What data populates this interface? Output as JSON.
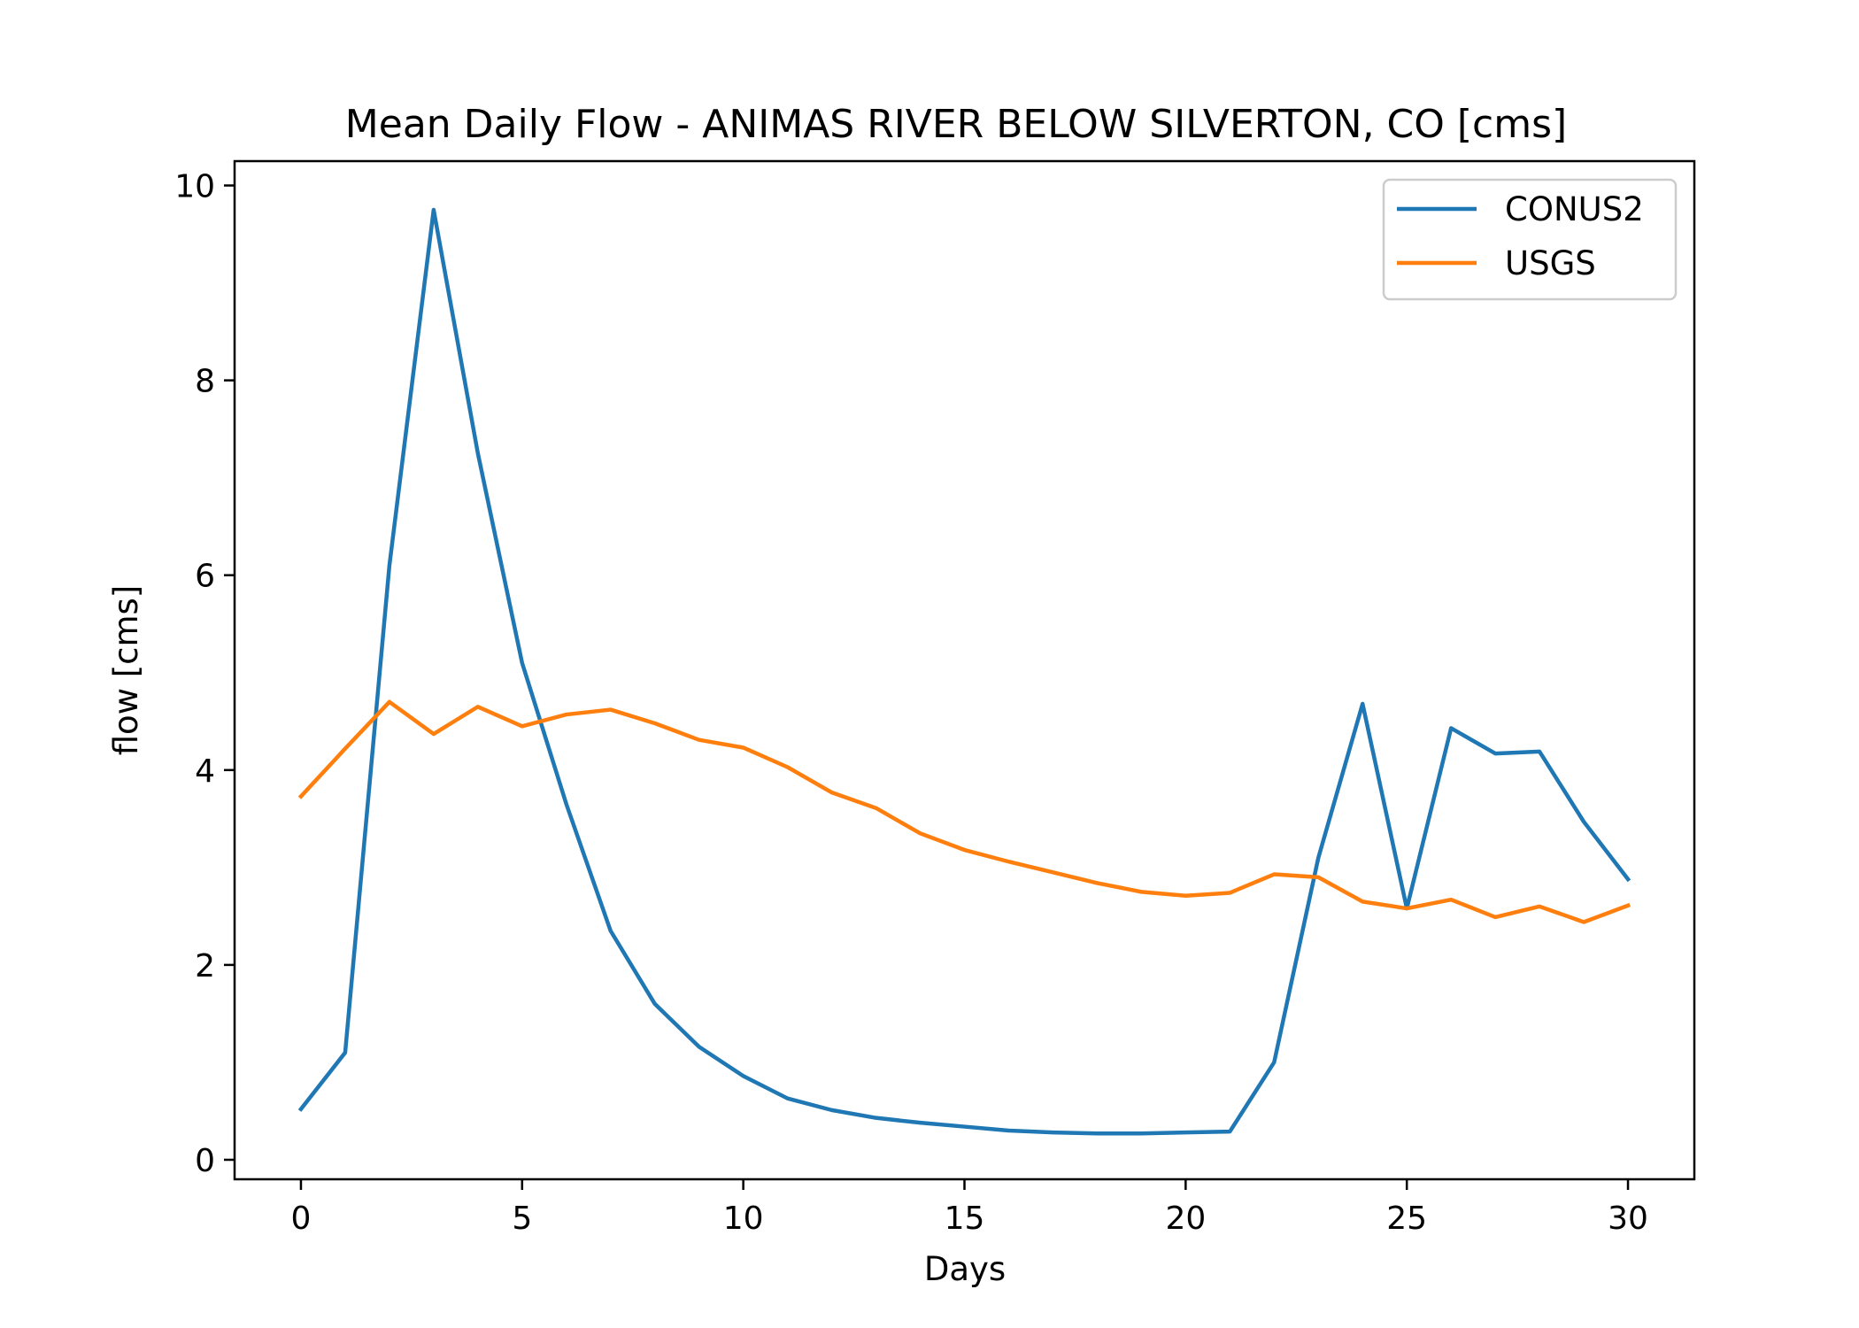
{
  "chart_data": {
    "type": "line",
    "title": "Mean Daily Flow - ANIMAS RIVER BELOW SILVERTON, CO [cms]",
    "xlabel": "Days",
    "ylabel": "flow [cms]",
    "xlim": [
      -1.5,
      31.5
    ],
    "ylim": [
      -0.2,
      10.25
    ],
    "xticks": [
      0,
      5,
      10,
      15,
      20,
      25,
      30
    ],
    "yticks": [
      0,
      2,
      4,
      6,
      8,
      10
    ],
    "grid": false,
    "legend_position": "top-right",
    "x": [
      0,
      1,
      2,
      3,
      4,
      5,
      6,
      7,
      8,
      9,
      10,
      11,
      12,
      13,
      14,
      15,
      16,
      17,
      18,
      19,
      20,
      21,
      22,
      23,
      24,
      25,
      26,
      27,
      28,
      29,
      30
    ],
    "series": [
      {
        "name": "CONUS2",
        "color": "#1f77b4",
        "values": [
          0.52,
          1.1,
          6.1,
          9.75,
          7.25,
          5.1,
          3.65,
          2.35,
          1.6,
          1.16,
          0.86,
          0.63,
          0.51,
          0.43,
          0.38,
          0.34,
          0.3,
          0.28,
          0.27,
          0.27,
          0.28,
          0.29,
          1.0,
          3.1,
          4.68,
          2.58,
          4.43,
          4.17,
          4.19,
          3.47,
          2.88
        ]
      },
      {
        "name": "USGS",
        "color": "#ff7f0e",
        "values": [
          3.73,
          4.22,
          4.7,
          4.37,
          4.65,
          4.45,
          4.57,
          4.62,
          4.48,
          4.31,
          4.23,
          4.03,
          3.77,
          3.61,
          3.35,
          3.18,
          3.06,
          2.95,
          2.84,
          2.75,
          2.71,
          2.74,
          2.93,
          2.9,
          2.65,
          2.58,
          2.67,
          2.49,
          2.6,
          2.44,
          2.61
        ]
      }
    ]
  }
}
